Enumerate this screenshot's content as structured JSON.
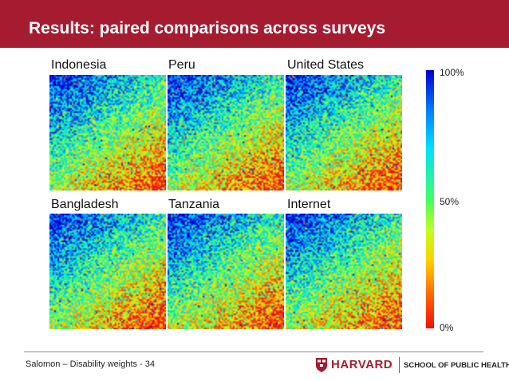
{
  "slide": {
    "title": "Results: paired comparisons across surveys",
    "colors": {
      "header": "#a51c30",
      "brand": "#a51c30"
    }
  },
  "chart_data": {
    "type": "heatmap",
    "panels": [
      {
        "name": "Indonesia",
        "pattern": "upper-left blue, lower-right red"
      },
      {
        "name": "Peru",
        "pattern": "upper-left blue, lower-right red"
      },
      {
        "name": "United States",
        "pattern": "upper-left blue, lower-right red"
      },
      {
        "name": "Bangladesh",
        "pattern": "upper-left blue, lower-right red"
      },
      {
        "name": "Tanzania",
        "pattern": "upper-left blue, lower-right red"
      },
      {
        "name": "Internet",
        "pattern": "upper-left blue, lower-right red"
      }
    ],
    "colorbar": {
      "labels": [
        "100%",
        "50%",
        "0%"
      ],
      "range": [
        0,
        100
      ],
      "colors": [
        "#0000cc",
        "#00e0ff",
        "#40ff60",
        "#ffd000",
        "#ee1010"
      ]
    }
  },
  "footer": {
    "text": "Salomon – Disability weights - 34",
    "logo_name": "HARVARD",
    "logo_sub": "SCHOOL OF PUBLIC HEALTH"
  }
}
